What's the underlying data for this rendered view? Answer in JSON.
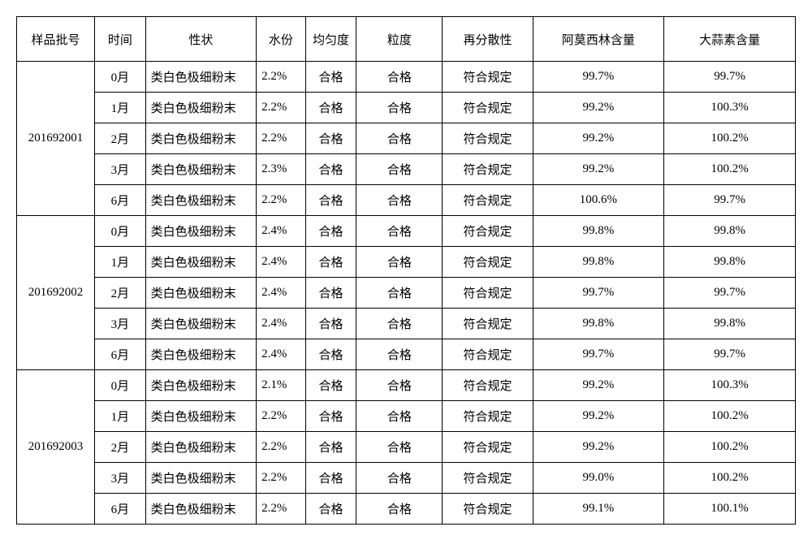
{
  "table": {
    "columns": [
      {
        "key": "batch",
        "label": "样品批号",
        "class": "c-batch"
      },
      {
        "key": "time",
        "label": "时间",
        "class": "c-time"
      },
      {
        "key": "prop",
        "label": "性状",
        "class": "c-prop"
      },
      {
        "key": "water",
        "label": "水份",
        "class": "c-water"
      },
      {
        "key": "unif",
        "label": "均匀度",
        "class": "c-unif"
      },
      {
        "key": "gran",
        "label": "粒度",
        "class": "c-gran"
      },
      {
        "key": "disp",
        "label": "再分散性",
        "class": "c-disp"
      },
      {
        "key": "amo",
        "label": "阿莫西林含量",
        "class": "c-amo"
      },
      {
        "key": "alli",
        "label": "大蒜素含量",
        "class": "c-alli"
      }
    ],
    "groups": [
      {
        "batch": "201692001",
        "rows": [
          {
            "time": "0月",
            "prop": "类白色极细粉末",
            "water": "2.2%",
            "unif": "合格",
            "gran": "合格",
            "disp": "符合规定",
            "amo": "99.7%",
            "alli": "99.7%"
          },
          {
            "time": "1月",
            "prop": "类白色极细粉末",
            "water": "2.2%",
            "unif": "合格",
            "gran": "合格",
            "disp": "符合规定",
            "amo": "99.2%",
            "alli": "100.3%"
          },
          {
            "time": "2月",
            "prop": "类白色极细粉末",
            "water": "2.2%",
            "unif": "合格",
            "gran": "合格",
            "disp": "符合规定",
            "amo": "99.2%",
            "alli": "100.2%"
          },
          {
            "time": "3月",
            "prop": "类白色极细粉末",
            "water": "2.3%",
            "unif": "合格",
            "gran": "合格",
            "disp": "符合规定",
            "amo": "99.2%",
            "alli": "100.2%"
          },
          {
            "time": "6月",
            "prop": "类白色极细粉末",
            "water": "2.2%",
            "unif": "合格",
            "gran": "合格",
            "disp": "符合规定",
            "amo": "100.6%",
            "alli": "99.7%"
          }
        ]
      },
      {
        "batch": "201692002",
        "rows": [
          {
            "time": "0月",
            "prop": "类白色极细粉末",
            "water": "2.4%",
            "unif": "合格",
            "gran": "合格",
            "disp": "符合规定",
            "amo": "99.8%",
            "alli": "99.8%"
          },
          {
            "time": "1月",
            "prop": "类白色极细粉末",
            "water": "2.4%",
            "unif": "合格",
            "gran": "合格",
            "disp": "符合规定",
            "amo": "99.8%",
            "alli": "99.8%"
          },
          {
            "time": "2月",
            "prop": "类白色极细粉末",
            "water": "2.4%",
            "unif": "合格",
            "gran": "合格",
            "disp": "符合规定",
            "amo": "99.7%",
            "alli": "99.7%"
          },
          {
            "time": "3月",
            "prop": "类白色极细粉末",
            "water": "2.4%",
            "unif": "合格",
            "gran": "合格",
            "disp": "符合规定",
            "amo": "99.8%",
            "alli": "99.8%"
          },
          {
            "time": "6月",
            "prop": "类白色极细粉末",
            "water": "2.4%",
            "unif": "合格",
            "gran": "合格",
            "disp": "符合规定",
            "amo": "99.7%",
            "alli": "99.7%"
          }
        ]
      },
      {
        "batch": "201692003",
        "rows": [
          {
            "time": "0月",
            "prop": "类白色极细粉末",
            "water": "2.1%",
            "unif": "合格",
            "gran": "合格",
            "disp": "符合规定",
            "amo": "99.2%",
            "alli": "100.3%"
          },
          {
            "time": "1月",
            "prop": "类白色极细粉末",
            "water": "2.2%",
            "unif": "合格",
            "gran": "合格",
            "disp": "符合规定",
            "amo": "99.2%",
            "alli": "100.2%"
          },
          {
            "time": "2月",
            "prop": "类白色极细粉末",
            "water": "2.2%",
            "unif": "合格",
            "gran": "合格",
            "disp": "符合规定",
            "amo": "99.2%",
            "alli": "100.2%"
          },
          {
            "time": "3月",
            "prop": "类白色极细粉末",
            "water": "2.2%",
            "unif": "合格",
            "gran": "合格",
            "disp": "符合规定",
            "amo": "99.0%",
            "alli": "100.2%"
          },
          {
            "time": "6月",
            "prop": "类白色极细粉末",
            "water": "2.2%",
            "unif": "合格",
            "gran": "合格",
            "disp": "符合规定",
            "amo": "99.1%",
            "alli": "100.1%"
          }
        ]
      }
    ],
    "styling": {
      "border_color": "#000000",
      "background_color": "#ffffff",
      "text_color": "#000000",
      "font_family": "SimSun",
      "header_fontsize_pt": 12,
      "cell_fontsize_pt": 12
    }
  }
}
